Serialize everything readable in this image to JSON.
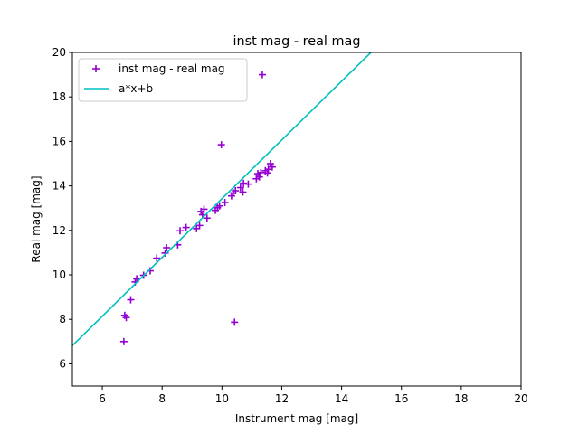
{
  "chart_data": {
    "type": "scatter",
    "title": "inst mag - real mag",
    "xlabel": "Instrument mag [mag]",
    "ylabel": "Real mag [mag]",
    "xlim": [
      5,
      20
    ],
    "ylim": [
      5,
      20
    ],
    "xticks": [
      "6",
      "8",
      "10",
      "12",
      "14",
      "16",
      "18",
      "20"
    ],
    "yticks": [
      "6",
      "8",
      "10",
      "12",
      "14",
      "16",
      "18",
      "20"
    ],
    "grid": false,
    "legend_position": "top-left",
    "series": [
      {
        "name": "inst mag - real mag",
        "kind": "scatter",
        "marker": "plus",
        "color": "#9400d3",
        "points": [
          [
            6.72,
            7.0
          ],
          [
            6.75,
            8.18
          ],
          [
            6.8,
            8.08
          ],
          [
            6.95,
            8.88
          ],
          [
            7.1,
            9.68
          ],
          [
            7.15,
            9.82
          ],
          [
            7.38,
            9.98
          ],
          [
            7.6,
            10.18
          ],
          [
            7.82,
            10.75
          ],
          [
            8.1,
            10.98
          ],
          [
            8.15,
            11.22
          ],
          [
            8.52,
            11.35
          ],
          [
            8.6,
            11.98
          ],
          [
            8.8,
            12.13
          ],
          [
            9.15,
            12.08
          ],
          [
            9.25,
            12.22
          ],
          [
            9.3,
            12.85
          ],
          [
            9.35,
            12.7
          ],
          [
            9.4,
            12.95
          ],
          [
            9.5,
            12.55
          ],
          [
            9.78,
            12.9
          ],
          [
            9.85,
            13.02
          ],
          [
            9.92,
            13.1
          ],
          [
            9.98,
            15.85
          ],
          [
            10.1,
            13.25
          ],
          [
            10.32,
            13.55
          ],
          [
            10.38,
            13.68
          ],
          [
            10.45,
            13.78
          ],
          [
            10.42,
            7.87
          ],
          [
            10.62,
            13.92
          ],
          [
            10.7,
            13.72
          ],
          [
            10.72,
            14.12
          ],
          [
            10.88,
            14.08
          ],
          [
            11.15,
            14.32
          ],
          [
            11.2,
            14.55
          ],
          [
            11.25,
            14.4
          ],
          [
            11.3,
            14.6
          ],
          [
            11.35,
            19.0
          ],
          [
            11.45,
            14.68
          ],
          [
            11.52,
            14.58
          ],
          [
            11.55,
            14.75
          ],
          [
            11.62,
            15.0
          ],
          [
            11.68,
            14.85
          ]
        ]
      },
      {
        "name": "a*x+b",
        "kind": "line",
        "color": "#00bfbf",
        "x": [
          5,
          14.98
        ],
        "y": [
          6.82,
          20.0
        ]
      }
    ]
  }
}
